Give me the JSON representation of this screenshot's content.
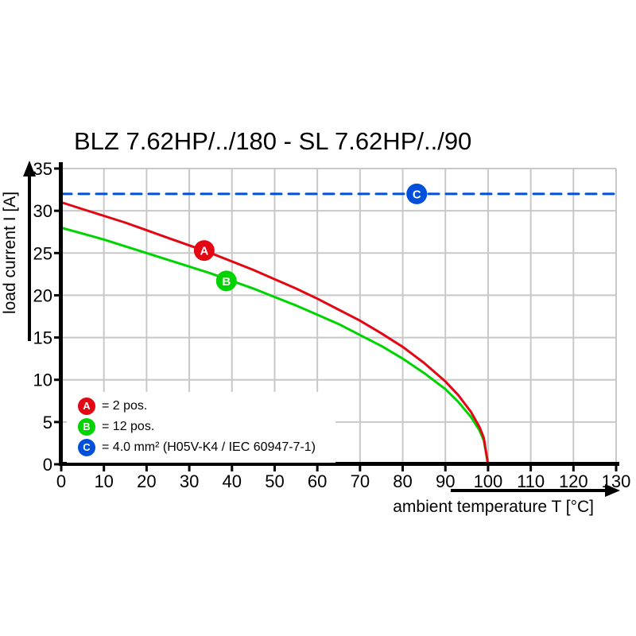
{
  "chart": {
    "title": "BLZ 7.62HP/../180 - SL 7.62HP/../90",
    "xlabel": "ambient temperature T [°C]",
    "ylabel": "load current I [A]"
  },
  "legend": {
    "items": [
      {
        "id": "A",
        "color": "#e30613",
        "label": "= 2 pos."
      },
      {
        "id": "B",
        "color": "#00d400",
        "label": "= 12 pos."
      },
      {
        "id": "C",
        "color": "#0050dc",
        "label": "= 4.0 mm² (H05V-K4 / IEC 60947-7-1)"
      }
    ]
  },
  "chart_data": {
    "type": "line",
    "title": "BLZ 7.62HP/../180 - SL 7.62HP/../90",
    "xlabel": "ambient temperature T [°C]",
    "ylabel": "load current I [A]",
    "xlim": [
      0,
      130
    ],
    "ylim": [
      0,
      35
    ],
    "xticks": [
      0,
      10,
      20,
      30,
      40,
      50,
      60,
      70,
      80,
      90,
      100,
      110,
      120,
      130
    ],
    "yticks": [
      0,
      5,
      10,
      15,
      20,
      25,
      30,
      35
    ],
    "grid": true,
    "grid_color": "#c8c8c8",
    "axis_color": "#000000",
    "legend_position": "lower-left-inside",
    "series": [
      {
        "name": "B",
        "description": "12 pos.",
        "color": "#00d400",
        "style": "solid",
        "marker": {
          "letter": "B",
          "t": 38.7,
          "i": 21.7
        },
        "points": [
          [
            0,
            28.0
          ],
          [
            5,
            27.3
          ],
          [
            10,
            26.6
          ],
          [
            15,
            25.8
          ],
          [
            20,
            25.0
          ],
          [
            25,
            24.2
          ],
          [
            30,
            23.4
          ],
          [
            35,
            22.6
          ],
          [
            40,
            21.7
          ],
          [
            45,
            20.8
          ],
          [
            50,
            19.8
          ],
          [
            55,
            18.8
          ],
          [
            60,
            17.7
          ],
          [
            65,
            16.6
          ],
          [
            70,
            15.3
          ],
          [
            75,
            14.0
          ],
          [
            80,
            12.5
          ],
          [
            85,
            10.8
          ],
          [
            90,
            8.9
          ],
          [
            93,
            7.4
          ],
          [
            96,
            5.6
          ],
          [
            98,
            4.0
          ],
          [
            99,
            2.8
          ],
          [
            100,
            0
          ]
        ]
      },
      {
        "name": "A",
        "description": "2 pos.",
        "color": "#e30613",
        "style": "solid",
        "marker": {
          "letter": "A",
          "t": 33.5,
          "i": 25.3
        },
        "points": [
          [
            0,
            31.0
          ],
          [
            5,
            30.2
          ],
          [
            10,
            29.4
          ],
          [
            15,
            28.6
          ],
          [
            20,
            27.7
          ],
          [
            25,
            26.8
          ],
          [
            30,
            25.9
          ],
          [
            35,
            25.0
          ],
          [
            40,
            24.0
          ],
          [
            45,
            23.0
          ],
          [
            50,
            21.9
          ],
          [
            55,
            20.8
          ],
          [
            60,
            19.6
          ],
          [
            65,
            18.3
          ],
          [
            70,
            17.0
          ],
          [
            75,
            15.5
          ],
          [
            80,
            13.9
          ],
          [
            85,
            12.0
          ],
          [
            90,
            9.8
          ],
          [
            93,
            8.2
          ],
          [
            96,
            6.2
          ],
          [
            98,
            4.4
          ],
          [
            99,
            3.1
          ],
          [
            100,
            0
          ]
        ]
      },
      {
        "name": "C",
        "description": "4.0 mm² (H05V-K4 / IEC 60947-7-1)",
        "color": "#0050dc",
        "style": "dashed",
        "constant_value": 32,
        "marker": {
          "letter": "C",
          "t": 83.3,
          "i": 32
        },
        "points": [
          [
            0,
            32
          ],
          [
            130,
            32
          ]
        ]
      }
    ]
  }
}
